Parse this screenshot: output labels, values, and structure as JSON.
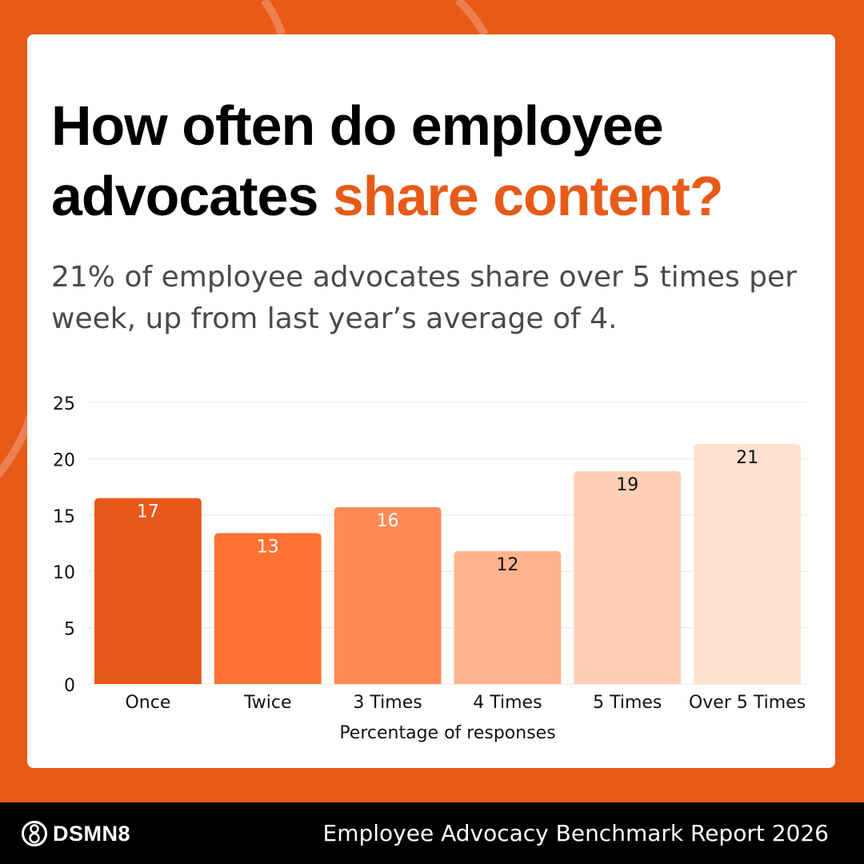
{
  "heading": {
    "line1": "How often do employee",
    "line2_plain": "advocates ",
    "line2_highlight": "share content?"
  },
  "subtitle": "21% of employee advocates share over 5 times per week, up from last year’s average of 4.",
  "footer": {
    "brand": "DSMN8",
    "brand_icon": "dsmn8-logo-icon",
    "report": "Employee Advocacy Benchmark Report 2026"
  },
  "colors": {
    "accent": "#E85A18",
    "bars": [
      "#E8581A",
      "#FF7232",
      "#FF8A55",
      "#FFB48E",
      "#FFCFB6",
      "#FFE1CF"
    ]
  },
  "chart_data": {
    "type": "bar",
    "categories": [
      "Once",
      "Twice",
      "3 Times",
      "4 Times",
      "5 Times",
      "Over 5 Times"
    ],
    "values": [
      17,
      13,
      16,
      12,
      19,
      21
    ],
    "bar_values": [
      16.5,
      13.4,
      15.7,
      11.8,
      18.9,
      21.3
    ],
    "xlabel": "Percentage of responses",
    "ylabel": "",
    "ylim": [
      0,
      25
    ],
    "yticks": [
      0,
      5,
      10,
      15,
      20,
      25
    ],
    "grid": true,
    "legend": "none"
  }
}
